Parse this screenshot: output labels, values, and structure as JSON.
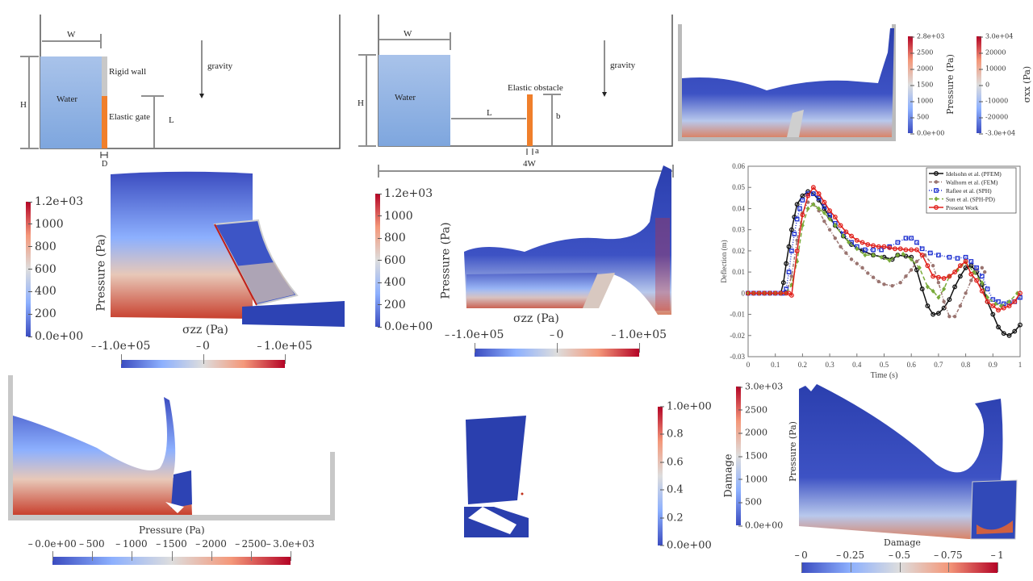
{
  "colors": {
    "coolwarm_low": "#3b4cc0",
    "coolwarm_mid": "#dddddd",
    "coolwarm_high": "#b40426",
    "water": "#8fb3e3",
    "elastic": "#f07f2b",
    "rigid_wall": "#c8c8c8"
  },
  "schematic_gate": {
    "W": "W",
    "H": "H",
    "water": "Water",
    "rigid_wall": "Rigid wall",
    "elastic_gate": "Elastic gate",
    "L": "L",
    "D": "D",
    "gravity": "gravity"
  },
  "schematic_obstacle": {
    "W": "W",
    "H": "H",
    "water": "Water",
    "L": "L",
    "elastic_obstacle": "Elastic obstacle",
    "b": "b",
    "a": "a",
    "gravity": "gravity",
    "width": "4W"
  },
  "panel_top_right": {
    "pressure_colorbar": {
      "title": "Pressure (Pa)",
      "ticks": [
        "2.8e+03",
        "2500",
        "2000",
        "1500",
        "1000",
        "500",
        "0.0e+00"
      ]
    },
    "stress_colorbar": {
      "title": "σxx (Pa)",
      "ticks": [
        "3.0e+04",
        "20000",
        "10000",
        "0",
        "-10000",
        "-20000",
        "-3.0e+04"
      ]
    }
  },
  "panel_gate_sim": {
    "pressure_colorbar": {
      "title": "Pressure (Pa)",
      "ticks": [
        "1.2e+03",
        "1000",
        "800",
        "600",
        "400",
        "200",
        "0.0e+00"
      ]
    },
    "stress_colorbar": {
      "title": "σzz (Pa)",
      "ticks": [
        "-1.0e+05",
        "0",
        "1.0e+05"
      ]
    }
  },
  "panel_obstacle_sim": {
    "pressure_colorbar": {
      "title": "Pressure (Pa)",
      "ticks": [
        "1.2e+03",
        "1000",
        "800",
        "600",
        "400",
        "200",
        "0.0e+00"
      ]
    },
    "stress_colorbar": {
      "title": "σzz (Pa)",
      "ticks": [
        "-1.0e+05",
        "0",
        "1.0e+05"
      ]
    }
  },
  "panel_tank": {
    "pressure_colorbar": {
      "title": "Pressure (Pa)",
      "ticks": [
        "0.0e+00",
        "500",
        "1000",
        "1500",
        "2000",
        "2500",
        "3.0e+03"
      ]
    }
  },
  "panel_damage": {
    "damage_colorbar": {
      "title": "Damage",
      "ticks": [
        "1.0e+00",
        "0.8",
        "0.6",
        "0.4",
        "0.2",
        "0.0e+00"
      ]
    }
  },
  "panel_bottom_right": {
    "pressure_colorbar": {
      "title": "Pressure (Pa)",
      "ticks": [
        "3.0e+03",
        "2500",
        "2000",
        "1500",
        "1000",
        "500",
        "0.0e+00"
      ]
    },
    "damage_colorbar": {
      "title": "Damage",
      "ticks": [
        "0",
        "0.25",
        "0.5",
        "0.75",
        "1"
      ]
    }
  },
  "chart_data": {
    "type": "line",
    "xlabel": "Time (s)",
    "ylabel": "Deflection (m)",
    "xlim": [
      0,
      1
    ],
    "ylim": [
      -0.03,
      0.06
    ],
    "xticks": [
      "0",
      "0.1",
      "0.2",
      "0.3",
      "0.4",
      "0.5",
      "0.6",
      "0.7",
      "0.8",
      "0.9",
      "1"
    ],
    "yticks": [
      "0.06",
      "0.05",
      "0.04",
      "0.03",
      "0.02",
      "0.01",
      "0",
      "-0.01",
      "-0.02",
      "-0.03"
    ],
    "grid": false,
    "legend_position": "top-right",
    "series": [
      {
        "name": "Idelsohn et al. (PFEM)",
        "color": "#111111",
        "marker": "circle",
        "dash": "",
        "points": [
          [
            0,
            0
          ],
          [
            0.02,
            0
          ],
          [
            0.04,
            0
          ],
          [
            0.06,
            0
          ],
          [
            0.08,
            0
          ],
          [
            0.1,
            0
          ],
          [
            0.12,
            0
          ],
          [
            0.13,
            0.005
          ],
          [
            0.14,
            0.014
          ],
          [
            0.15,
            0.022
          ],
          [
            0.16,
            0.03
          ],
          [
            0.17,
            0.036
          ],
          [
            0.18,
            0.042
          ],
          [
            0.2,
            0.046
          ],
          [
            0.22,
            0.048
          ],
          [
            0.24,
            0.047
          ],
          [
            0.26,
            0.044
          ],
          [
            0.28,
            0.04
          ],
          [
            0.3,
            0.036
          ],
          [
            0.32,
            0.032
          ],
          [
            0.35,
            0.027
          ],
          [
            0.38,
            0.023
          ],
          [
            0.42,
            0.02
          ],
          [
            0.46,
            0.018
          ],
          [
            0.5,
            0.017
          ],
          [
            0.53,
            0.016
          ],
          [
            0.55,
            0.018
          ],
          [
            0.58,
            0.0175
          ],
          [
            0.6,
            0.017
          ],
          [
            0.62,
            0.011
          ],
          [
            0.64,
            0.002
          ],
          [
            0.66,
            -0.006
          ],
          [
            0.68,
            -0.01
          ],
          [
            0.7,
            -0.0095
          ],
          [
            0.72,
            -0.007
          ],
          [
            0.74,
            -0.003
          ],
          [
            0.76,
            0.003
          ],
          [
            0.78,
            0.008
          ],
          [
            0.8,
            0.012
          ],
          [
            0.82,
            0.013
          ],
          [
            0.84,
            0.01
          ],
          [
            0.86,
            0.004
          ],
          [
            0.88,
            -0.004
          ],
          [
            0.9,
            -0.01
          ],
          [
            0.92,
            -0.016
          ],
          [
            0.94,
            -0.019
          ],
          [
            0.96,
            -0.02
          ],
          [
            0.98,
            -0.018
          ],
          [
            1.0,
            -0.015
          ]
        ]
      },
      {
        "name": "Walhorn et al. (FEM)",
        "color": "#9a7470",
        "marker": "star",
        "dash": "4,2,1,2",
        "points": [
          [
            0,
            0
          ],
          [
            0.02,
            0
          ],
          [
            0.04,
            0
          ],
          [
            0.06,
            0
          ],
          [
            0.08,
            0
          ],
          [
            0.1,
            0
          ],
          [
            0.12,
            0
          ],
          [
            0.14,
            0
          ],
          [
            0.16,
            0.008
          ],
          [
            0.18,
            0.025
          ],
          [
            0.2,
            0.038
          ],
          [
            0.22,
            0.043
          ],
          [
            0.24,
            0.042
          ],
          [
            0.26,
            0.039
          ],
          [
            0.28,
            0.034
          ],
          [
            0.3,
            0.03
          ],
          [
            0.32,
            0.026
          ],
          [
            0.34,
            0.022
          ],
          [
            0.36,
            0.019
          ],
          [
            0.38,
            0.016
          ],
          [
            0.4,
            0.014
          ],
          [
            0.42,
            0.012
          ],
          [
            0.44,
            0.0095
          ],
          [
            0.46,
            0.0075
          ],
          [
            0.48,
            0.0055
          ],
          [
            0.5,
            0.0042
          ],
          [
            0.53,
            0.0035
          ],
          [
            0.56,
            0.005
          ],
          [
            0.58,
            0.008
          ],
          [
            0.6,
            0.011
          ],
          [
            0.62,
            0.015
          ],
          [
            0.65,
            0.018
          ],
          [
            0.68,
            0.013
          ],
          [
            0.7,
            0.005
          ],
          [
            0.72,
            -0.004
          ],
          [
            0.74,
            -0.011
          ],
          [
            0.76,
            -0.011
          ],
          [
            0.78,
            -0.006
          ],
          [
            0.8,
            0.0
          ],
          [
            0.82,
            0.006
          ],
          [
            0.84,
            0.011
          ],
          [
            0.86,
            0.012
          ],
          [
            0.87,
            0.01
          ]
        ]
      },
      {
        "name": "Rafiee et al. (SPH)",
        "color": "#1c2fd0",
        "marker": "square",
        "dash": "1,2",
        "points": [
          [
            0,
            0
          ],
          [
            0.02,
            0
          ],
          [
            0.04,
            0
          ],
          [
            0.06,
            0
          ],
          [
            0.08,
            0
          ],
          [
            0.1,
            0
          ],
          [
            0.12,
            0
          ],
          [
            0.13,
            0
          ],
          [
            0.14,
            0.002
          ],
          [
            0.15,
            0.01
          ],
          [
            0.16,
            0.02
          ],
          [
            0.17,
            0.028
          ],
          [
            0.18,
            0.035
          ],
          [
            0.19,
            0.04
          ],
          [
            0.2,
            0.044
          ],
          [
            0.22,
            0.047
          ],
          [
            0.24,
            0.047
          ],
          [
            0.26,
            0.045
          ],
          [
            0.28,
            0.041
          ],
          [
            0.3,
            0.037
          ],
          [
            0.32,
            0.033
          ],
          [
            0.35,
            0.028
          ],
          [
            0.38,
            0.024
          ],
          [
            0.4,
            0.022
          ],
          [
            0.43,
            0.0205
          ],
          [
            0.46,
            0.0205
          ],
          [
            0.49,
            0.0205
          ],
          [
            0.52,
            0.022
          ],
          [
            0.55,
            0.024
          ],
          [
            0.58,
            0.026
          ],
          [
            0.6,
            0.026
          ],
          [
            0.62,
            0.024
          ],
          [
            0.64,
            0.021
          ],
          [
            0.67,
            0.019
          ],
          [
            0.7,
            0.018
          ],
          [
            0.74,
            0.017
          ],
          [
            0.77,
            0.0165
          ],
          [
            0.8,
            0.017
          ],
          [
            0.82,
            0.015
          ],
          [
            0.84,
            0.012
          ],
          [
            0.86,
            0.008
          ],
          [
            0.88,
            0.002
          ],
          [
            0.9,
            -0.003
          ],
          [
            0.92,
            -0.004
          ],
          [
            0.94,
            -0.005
          ],
          [
            0.96,
            -0.0045
          ],
          [
            0.98,
            -0.004
          ],
          [
            1.0,
            -0.002
          ]
        ]
      },
      {
        "name": "Sun et al. (SPH-PD)",
        "color": "#7aab3a",
        "marker": "diamond",
        "dash": "5,3",
        "points": [
          [
            0,
            0
          ],
          [
            0.02,
            0
          ],
          [
            0.04,
            0
          ],
          [
            0.06,
            0
          ],
          [
            0.08,
            0
          ],
          [
            0.1,
            0
          ],
          [
            0.12,
            0
          ],
          [
            0.14,
            0
          ],
          [
            0.16,
            0.004
          ],
          [
            0.18,
            0.015
          ],
          [
            0.2,
            0.032
          ],
          [
            0.22,
            0.04
          ],
          [
            0.24,
            0.042
          ],
          [
            0.26,
            0.04
          ],
          [
            0.28,
            0.038
          ],
          [
            0.3,
            0.035
          ],
          [
            0.32,
            0.032
          ],
          [
            0.35,
            0.027
          ],
          [
            0.37,
            0.024
          ],
          [
            0.4,
            0.021
          ],
          [
            0.43,
            0.018
          ],
          [
            0.46,
            0.018
          ],
          [
            0.49,
            0.017
          ],
          [
            0.52,
            0.0155
          ],
          [
            0.55,
            0.018
          ],
          [
            0.57,
            0.0185
          ],
          [
            0.6,
            0.016
          ],
          [
            0.63,
            0.012
          ],
          [
            0.66,
            0.003
          ],
          [
            0.68,
            0.001
          ],
          [
            0.7,
            -0.002
          ],
          [
            0.72,
            0.002
          ],
          [
            0.74,
            0.008
          ],
          [
            0.77,
            0.011
          ],
          [
            0.8,
            0.0145
          ],
          [
            0.83,
            0.01
          ],
          [
            0.86,
            0.005
          ],
          [
            0.88,
            -0.002
          ],
          [
            0.91,
            -0.005
          ],
          [
            0.93,
            -0.006
          ],
          [
            0.96,
            -0.004
          ],
          [
            0.99,
            0.0
          ]
        ]
      },
      {
        "name": "Present Work",
        "color": "#e0201b",
        "marker": "circle",
        "dash": "",
        "points": [
          [
            0,
            0
          ],
          [
            0.02,
            0
          ],
          [
            0.04,
            0
          ],
          [
            0.06,
            0
          ],
          [
            0.08,
            0
          ],
          [
            0.1,
            0
          ],
          [
            0.12,
            0
          ],
          [
            0.14,
            0
          ],
          [
            0.15,
            0
          ],
          [
            0.16,
            -0.001
          ],
          [
            0.18,
            0.02
          ],
          [
            0.2,
            0.037
          ],
          [
            0.22,
            0.046
          ],
          [
            0.24,
            0.05
          ],
          [
            0.26,
            0.047
          ],
          [
            0.28,
            0.043
          ],
          [
            0.3,
            0.039
          ],
          [
            0.32,
            0.036
          ],
          [
            0.34,
            0.032
          ],
          [
            0.36,
            0.029
          ],
          [
            0.38,
            0.027
          ],
          [
            0.4,
            0.025
          ],
          [
            0.42,
            0.024
          ],
          [
            0.44,
            0.023
          ],
          [
            0.46,
            0.0225
          ],
          [
            0.48,
            0.022
          ],
          [
            0.5,
            0.022
          ],
          [
            0.52,
            0.0215
          ],
          [
            0.54,
            0.021
          ],
          [
            0.56,
            0.021
          ],
          [
            0.58,
            0.0205
          ],
          [
            0.6,
            0.0205
          ],
          [
            0.62,
            0.0205
          ],
          [
            0.64,
            0.018
          ],
          [
            0.66,
            0.013
          ],
          [
            0.68,
            0.008
          ],
          [
            0.7,
            0.0075
          ],
          [
            0.72,
            0.007
          ],
          [
            0.74,
            0.008
          ],
          [
            0.76,
            0.01
          ],
          [
            0.78,
            0.013
          ],
          [
            0.8,
            0.015
          ],
          [
            0.82,
            0.009
          ],
          [
            0.84,
            0.006
          ],
          [
            0.86,
            0.001
          ],
          [
            0.88,
            -0.004
          ],
          [
            0.9,
            -0.006
          ],
          [
            0.92,
            -0.008
          ],
          [
            0.94,
            -0.007
          ],
          [
            0.96,
            -0.006
          ],
          [
            0.98,
            -0.004
          ],
          [
            1.0,
            0
          ]
        ]
      }
    ]
  }
}
